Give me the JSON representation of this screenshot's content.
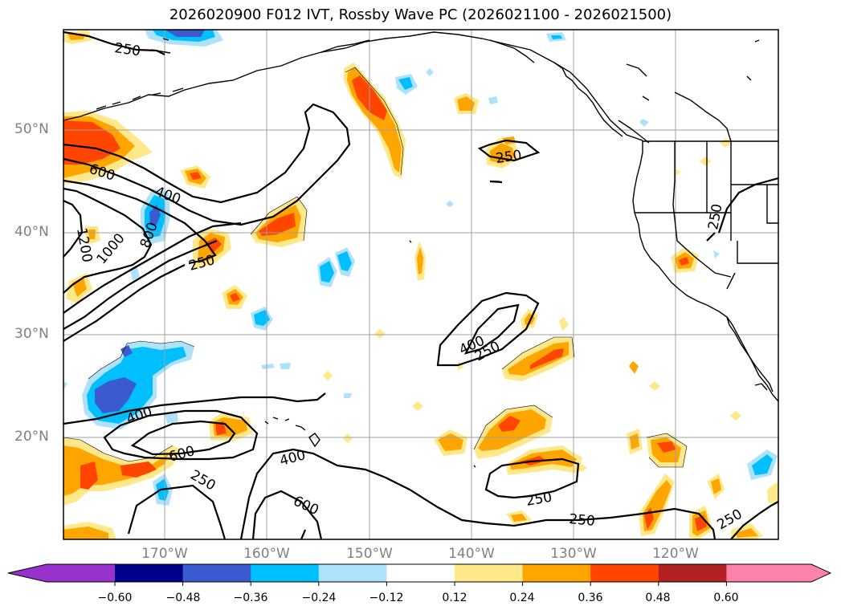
{
  "title": "2026020900 F012 IVT, Rossby Wave PC (2026021100 - 2026021500)",
  "lat_labels": [
    "50°N",
    "40°N",
    "30°N",
    "20°N"
  ],
  "lon_labels": [
    "170°W",
    "160°W",
    "150°W",
    "140°W",
    "130°W",
    "120°W"
  ],
  "contour_labels": [
    "250",
    "250",
    "250",
    "250",
    "250",
    "250",
    "250",
    "250",
    "250",
    "400",
    "400",
    "400",
    "400",
    "600",
    "600",
    "600",
    "800",
    "1000",
    "1200"
  ],
  "colorbar": {
    "ticks": [
      "−0.60",
      "−0.48",
      "−0.36",
      "−0.24",
      "−0.12",
      "0.12",
      "0.24",
      "0.36",
      "0.48",
      "0.60"
    ],
    "colors": [
      "#9932cc",
      "#00008b",
      "#3a5bd0",
      "#00bfff",
      "#aee2fa",
      "#ffffff",
      "#ffe88a",
      "#ffa500",
      "#ff4500",
      "#b22222",
      "#ff82ab"
    ]
  },
  "colors": {
    "frame": "#000000",
    "grid": "#a0a0a0",
    "axis_text": "#808080"
  }
}
